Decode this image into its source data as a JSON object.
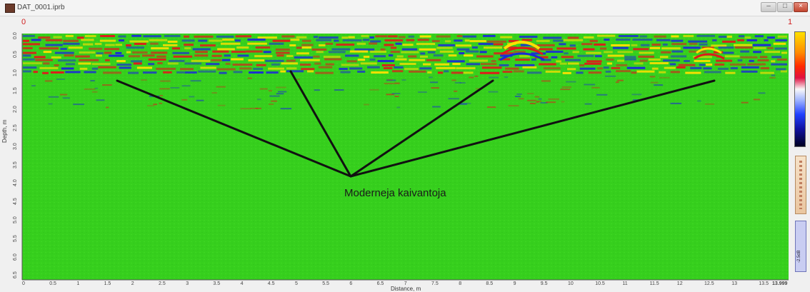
{
  "window": {
    "title": "DAT_0001.iprb"
  },
  "corners": {
    "left": "0",
    "right": "1"
  },
  "y_axis": {
    "label": "Depth, m",
    "ticks": [
      "0.0",
      "0.5",
      "1.0",
      "1.5",
      "2.0",
      "2.5",
      "3.0",
      "3.5",
      "4.0",
      "4.5",
      "5.0",
      "5.5",
      "6.0",
      "6.5"
    ]
  },
  "x_axis": {
    "label": "Distance, m",
    "ticks": [
      "0",
      "0.5",
      "1",
      "1.5",
      "2",
      "2.5",
      "3",
      "3.5",
      "4",
      "4.5",
      "5",
      "5.5",
      "6",
      "6.5",
      "7",
      "7.5",
      "8",
      "8.5",
      "9",
      "9.5",
      "10",
      "10.5",
      "11",
      "11.5",
      "12",
      "12.5",
      "13",
      "13.5"
    ],
    "end_value": "13.999"
  },
  "annotation": {
    "text": "Moderneja kaivantoja"
  },
  "side_panel": {
    "blue_label": "-2.5dB"
  },
  "colors": {
    "background_green": "#33d21a",
    "reflection_red": "#e01a1a",
    "reflection_blue": "#1a2ad8",
    "reflection_yellow": "#ffe000",
    "annotation_line": "#111111",
    "corner_marker": "#d02020"
  }
}
